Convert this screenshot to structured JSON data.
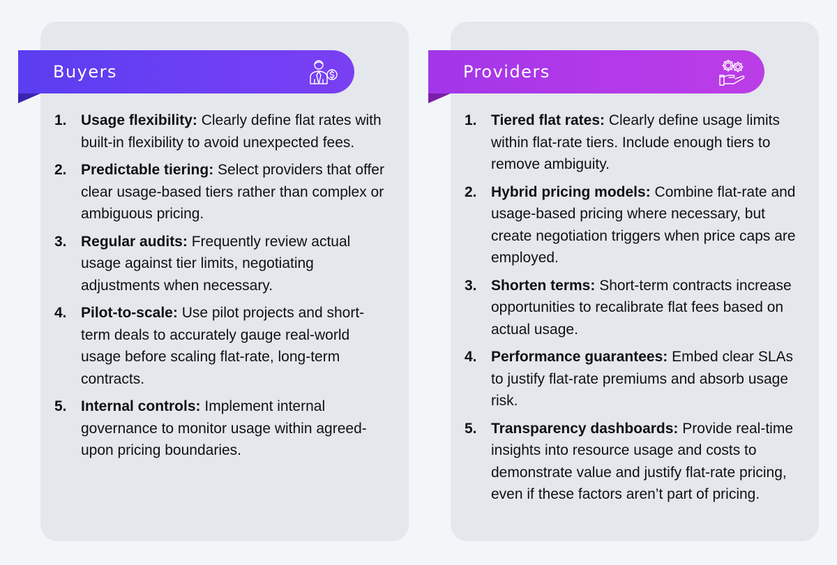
{
  "buyers": {
    "title": "Buyers",
    "icon": "person-dollar-icon",
    "items": [
      {
        "num": "1.",
        "term": "Usage flexibility:",
        "text": " Clearly define flat rates with built-in flexibility to avoid unexpected fees."
      },
      {
        "num": "2.",
        "term": "Predictable tiering:",
        "text": " Select providers that offer clear usage-based tiers rather than complex or ambiguous pricing."
      },
      {
        "num": "3.",
        "term": "Regular audits:",
        "text": " Frequently review actual usage against tier limits, negotiating adjustments when necessary."
      },
      {
        "num": "4.",
        "term": "Pilot-to-scale:",
        "text": " Use pilot projects and short-term deals to accurately gauge real-world usage before scaling flat-rate, long-term contracts."
      },
      {
        "num": "5.",
        "term": "Internal controls:",
        "text": " Implement internal governance to monitor usage within agreed-upon pricing boundaries."
      }
    ]
  },
  "providers": {
    "title": "Providers",
    "icon": "gears-hand-icon",
    "items": [
      {
        "num": "1.",
        "term": "Tiered flat rates:",
        "text": " Clearly define usage limits within flat-rate tiers. Include enough tiers to remove ambiguity."
      },
      {
        "num": "2.",
        "term": "Hybrid pricing models:",
        "text": " Combine flat-rate and usage-based pricing where necessary, but create negotiation triggers when price caps are employed."
      },
      {
        "num": "3.",
        "term": "Shorten terms:",
        "text": " Short-term contracts increase opportunities to recalibrate flat fees based on actual usage."
      },
      {
        "num": "4.",
        "term": "Performance guarantees:",
        "text": " Embed clear SLAs to justify flat-rate premiums and absorb usage risk."
      },
      {
        "num": "5.",
        "term": "Transparency dashboards:",
        "text": " Provide real-time insights into resource usage and costs to demonstrate value and justify flat-rate pricing, even if these factors aren’t part of pricing."
      }
    ]
  },
  "colors": {
    "buyers_banner": "#6a3ff4",
    "providers_banner": "#b03ae8",
    "card": "#e4e7ec",
    "background": "#f3f6f9"
  }
}
